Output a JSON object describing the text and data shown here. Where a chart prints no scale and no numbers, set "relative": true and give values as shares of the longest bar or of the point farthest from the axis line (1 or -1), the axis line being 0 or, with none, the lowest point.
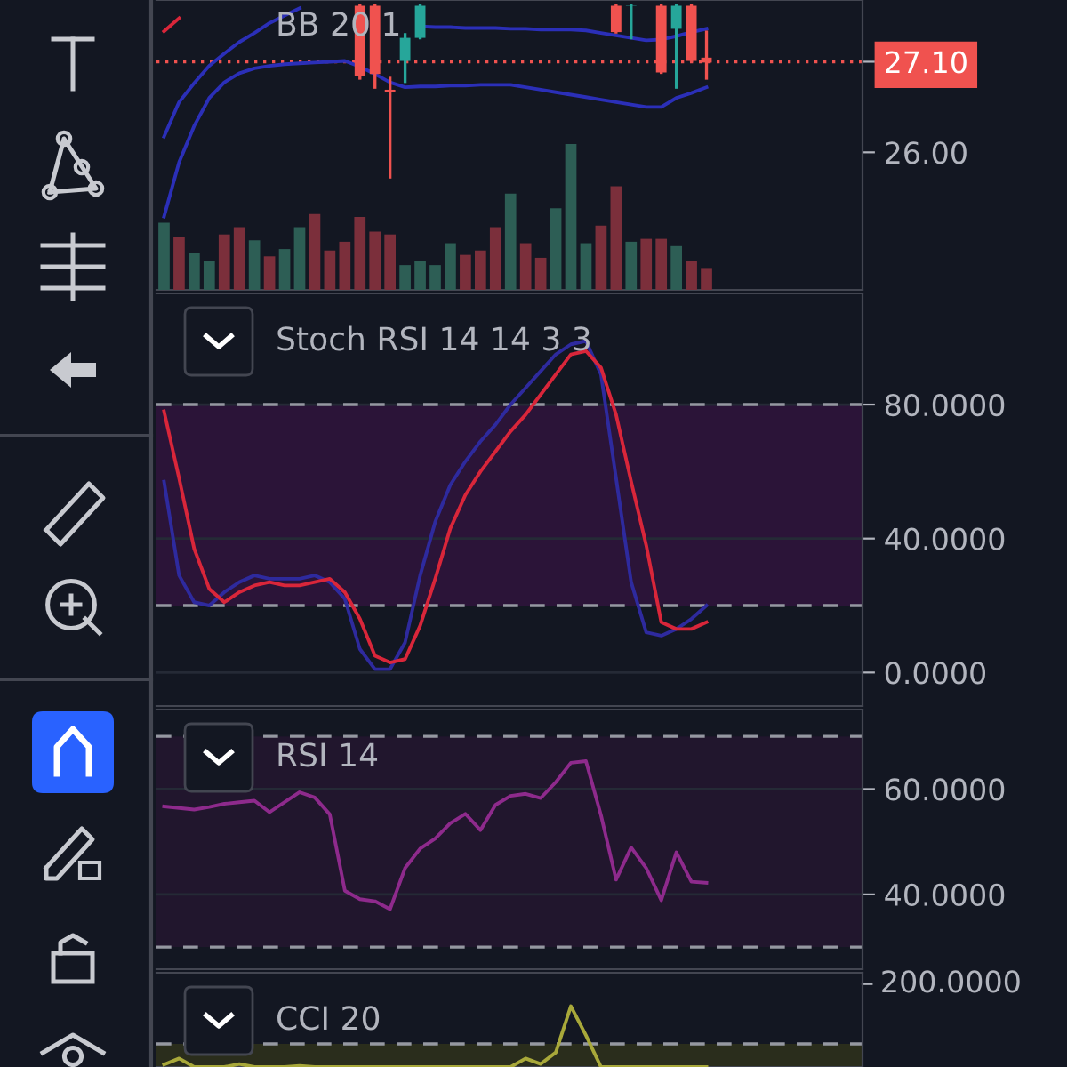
{
  "chart_data": [
    {
      "type": "candlestick",
      "title": "BB 20 1",
      "categories": [
        null,
        null,
        null,
        null,
        null,
        null,
        null,
        null,
        null,
        null,
        null,
        null,
        null,
        null,
        null,
        null,
        null,
        null,
        null,
        null,
        null,
        null,
        null,
        null,
        null,
        null,
        null,
        null,
        null,
        null,
        null,
        null,
        null,
        null,
        null,
        null,
        null
      ],
      "ohlc": [
        null,
        null,
        null,
        null,
        null,
        null,
        null,
        null,
        null,
        null,
        null,
        null,
        null,
        [
          27.78,
          27.78,
          26.9,
          26.93
        ],
        [
          27.78,
          27.78,
          26.79,
          26.95
        ],
        [
          26.76,
          26.9,
          25.7,
          26.73
        ],
        [
          27.11,
          27.43,
          26.86,
          27.39
        ],
        [
          27.39,
          27.78,
          27.39,
          27.78
        ],
        null,
        null,
        null,
        null,
        null,
        null,
        null,
        null,
        null,
        null,
        null,
        null,
        [
          27.78,
          27.78,
          27.46,
          27.46
        ],
        [
          27.78,
          27.78,
          27.39,
          27.78
        ],
        null,
        [
          27.78,
          27.78,
          26.97,
          26.97
        ],
        [
          27.5,
          27.78,
          26.79,
          27.78
        ],
        [
          27.78,
          27.78,
          27.11,
          27.11
        ],
        [
          27.15,
          27.46,
          26.9,
          27.09
        ]
      ],
      "colors": [
        null,
        null,
        null,
        null,
        null,
        null,
        null,
        null,
        null,
        null,
        null,
        null,
        null,
        "#f0524f",
        "#f0524f",
        "#f0524f",
        "#26a69a",
        "#26a69a",
        null,
        null,
        null,
        null,
        null,
        null,
        null,
        null,
        null,
        null,
        null,
        null,
        "#f0524f",
        "#26a69a",
        null,
        "#f0524f",
        "#26a69a",
        "#f0524f",
        "#f0524f"
      ],
      "series": [
        {
          "type": "line",
          "color": "#2b2fb8",
          "values": [
            25.22,
            25.88,
            26.32,
            26.66,
            26.85,
            26.96,
            27.02,
            27.05,
            27.07,
            27.08,
            27.09,
            27.1,
            27.11,
            27.04,
            26.95,
            26.85,
            26.79,
            26.8,
            26.8,
            26.81,
            26.81,
            26.82,
            26.82,
            26.82,
            26.79,
            26.76,
            26.73,
            26.7,
            26.67,
            26.64,
            26.61,
            26.58,
            26.55,
            26.55,
            26.66,
            26.72,
            26.79
          ]
        },
        {
          "type": "line",
          "color": "#2b2fb8",
          "values": [
            26.19,
            26.61,
            26.84,
            27.05,
            27.2,
            27.34,
            27.45,
            27.57,
            27.66,
            27.75,
            null,
            null,
            null,
            null,
            null,
            null,
            null,
            27.53,
            27.52,
            27.52,
            27.51,
            27.51,
            27.51,
            27.5,
            27.5,
            27.49,
            27.49,
            27.49,
            27.48,
            27.45,
            27.42,
            27.39,
            27.36,
            27.37,
            27.41,
            27.46,
            27.5
          ]
        },
        {
          "type": "line",
          "color": "#d9263a",
          "values": [
            27.47,
            27.63,
            null,
            null,
            null,
            null,
            null,
            null,
            null,
            null,
            null,
            null,
            null,
            null,
            null,
            null,
            null,
            null,
            null,
            null,
            null,
            null,
            null,
            null,
            null,
            null,
            null,
            null,
            null,
            null,
            null,
            null,
            null,
            null,
            null,
            null,
            null
          ]
        }
      ],
      "ylim": [
        24.33,
        27.85
      ],
      "yticks": [
        {
          "value": 26,
          "label": "26.00"
        },
        {
          "value": 27.1,
          "label": "27.10"
        }
      ],
      "ref_lines": [
        {
          "axis": "y",
          "value": 27.1,
          "color": "#f0524f",
          "line_style": "dotted"
        }
      ]
    },
    {
      "type": "bar",
      "relative": true,
      "categories": [
        null,
        null,
        null,
        null,
        null,
        null,
        null,
        null,
        null,
        null,
        null,
        null,
        null,
        null,
        null,
        null,
        null,
        null,
        null,
        null,
        null,
        null,
        null,
        null,
        null,
        null,
        null,
        null,
        null,
        null,
        null,
        null,
        null,
        null,
        null,
        null,
        null
      ],
      "values": [
        0.46,
        0.36,
        0.25,
        0.2,
        0.38,
        0.43,
        0.34,
        0.23,
        0.28,
        0.43,
        0.52,
        0.27,
        0.33,
        0.5,
        0.4,
        0.38,
        0.17,
        0.2,
        0.17,
        0.32,
        0.24,
        0.27,
        0.43,
        0.66,
        0.32,
        0.22,
        0.56,
        1,
        0.32,
        0.44,
        0.71,
        0.33,
        0.35,
        0.35,
        0.3,
        0.2,
        0.15
      ],
      "colors": [
        "#2d5e55",
        "#7b2f3b",
        "#2d5e55",
        "#2d5e55",
        "#7b2f3b",
        "#7b2f3b",
        "#2d5e55",
        "#7b2f3b",
        "#2d5e55",
        "#2d5e55",
        "#7b2f3b",
        "#7b2f3b",
        "#7b2f3b",
        "#7b2f3b",
        "#7b2f3b",
        "#7b2f3b",
        "#2d5e55",
        "#2d5e55",
        "#2d5e55",
        "#2d5e55",
        "#7b2f3b",
        "#7b2f3b",
        "#7b2f3b",
        "#2d5e55",
        "#7b2f3b",
        "#7b2f3b",
        "#2d5e55",
        "#2d5e55",
        "#2d5e55",
        "#7b2f3b",
        "#7b2f3b",
        "#2d5e55",
        "#7b2f3b",
        "#7b2f3b",
        "#2d5e55",
        "#7b2f3b",
        "#7b2f3b"
      ]
    },
    {
      "type": "line",
      "title": "Stoch RSI 14 14 3 3",
      "categories": [
        null,
        null,
        null,
        null,
        null,
        null,
        null,
        null,
        null,
        null,
        null,
        null,
        null,
        null,
        null,
        null,
        null,
        null,
        null,
        null,
        null,
        null,
        null,
        null,
        null,
        null,
        null,
        null,
        null,
        null,
        null,
        null,
        null,
        null,
        null,
        null,
        null
      ],
      "series": [
        {
          "color": "#2e2a9e",
          "values": [
            57,
            29,
            21,
            20,
            24,
            27,
            29,
            28,
            28,
            28,
            29,
            27,
            22,
            7,
            1,
            1,
            9,
            29,
            45,
            56,
            63,
            69,
            74,
            80,
            85,
            90,
            95,
            98,
            99,
            89,
            58,
            27,
            12,
            11,
            13,
            16,
            20
          ]
        },
        {
          "color": "#d9263a",
          "values": [
            78,
            58,
            37,
            25,
            21,
            24,
            26,
            27,
            26,
            26,
            27,
            28,
            24,
            16,
            5,
            3,
            4,
            14,
            28,
            43,
            53,
            60,
            66,
            72,
            77,
            83,
            89,
            95,
            96,
            91,
            77,
            57,
            38,
            15,
            13,
            13,
            15
          ]
        }
      ],
      "ylim": [
        -10,
        113.2
      ],
      "yticks": [
        {
          "value": 0,
          "label": "0.0000"
        },
        {
          "value": 40,
          "label": "40.0000"
        },
        {
          "value": 80,
          "label": "80.0000"
        }
      ],
      "bands": [
        {
          "axis": "y",
          "from": 20,
          "to": 80,
          "color": "#2b1438"
        }
      ],
      "ref_lines": [
        {
          "axis": "y",
          "value": 20,
          "color": "#9598a1",
          "line_style": "dashed"
        },
        {
          "axis": "y",
          "value": 80,
          "color": "#9598a1",
          "line_style": "dashed"
        }
      ],
      "tick_labels": "y",
      "grid": "y"
    },
    {
      "type": "line",
      "title": "RSI 14",
      "categories": [
        null,
        null,
        null,
        null,
        null,
        null,
        null,
        null,
        null,
        null,
        null,
        null,
        null,
        null,
        null,
        null,
        null,
        null,
        null,
        null,
        null,
        null,
        null,
        null,
        null,
        null,
        null,
        null,
        null,
        null,
        null,
        null,
        null,
        null,
        null,
        null,
        null
      ],
      "series": [
        {
          "color": "#8e2a8c",
          "values": [
            56.7,
            56.4,
            56.1,
            56.6,
            57.2,
            57.5,
            57.8,
            55.6,
            57.5,
            59.4,
            58.4,
            55.2,
            40.7,
            39.1,
            38.7,
            37.2,
            45.0,
            48.7,
            50.6,
            53.5,
            55.3,
            52.2,
            57.0,
            58.7,
            59.1,
            58.3,
            61.3,
            65.0,
            65.3,
            55.0,
            42.8,
            48.9,
            45.0,
            38.9,
            48.0,
            42.4,
            42.2
          ]
        }
      ],
      "ylim": [
        25.8,
        75.1
      ],
      "yticks": [
        {
          "value": 40,
          "label": "40.0000"
        },
        {
          "value": 60,
          "label": "60.0000"
        }
      ],
      "bands": [
        {
          "axis": "y",
          "from": 30,
          "to": 70,
          "color": "#21162d"
        }
      ],
      "ref_lines": [
        {
          "axis": "y",
          "value": 30,
          "color": "#9598a1",
          "line_style": "dashed"
        },
        {
          "axis": "y",
          "value": 70,
          "color": "#9598a1",
          "line_style": "dashed"
        }
      ],
      "tick_labels": "y",
      "grid": "y"
    },
    {
      "type": "line",
      "title": "CCI 20",
      "relative": true,
      "categories": [
        null,
        null,
        null,
        null,
        null,
        null,
        null,
        null,
        null,
        null,
        null,
        null,
        null,
        null,
        null,
        null,
        null,
        null,
        null,
        null,
        null,
        null,
        null,
        null,
        null,
        null,
        null,
        null,
        null,
        null,
        null,
        null,
        null,
        null,
        null,
        null,
        null
      ],
      "series": [
        {
          "color": "#a8a83a",
          "values": [
            0.04,
            0.14,
            0,
            0,
            0,
            0.05,
            0,
            0,
            0,
            0.02,
            0,
            0,
            0,
            0,
            0,
            0,
            0,
            0,
            0,
            0,
            0,
            0,
            0,
            0,
            0.14,
            0.05,
            0.24,
            1,
            0.52,
            0,
            0,
            0,
            0,
            0,
            0,
            0,
            0
          ]
        }
      ],
      "bands": [
        {
          "axis": "y",
          "from": 0,
          "to": 0.38,
          "color": "#2a2d1c"
        }
      ],
      "ref_lines": [
        {
          "axis": "y",
          "value": 0.38,
          "color": "#9598a1",
          "line_style": "dashed"
        }
      ],
      "annotations": [
        "200.0000"
      ]
    }
  ]
}
